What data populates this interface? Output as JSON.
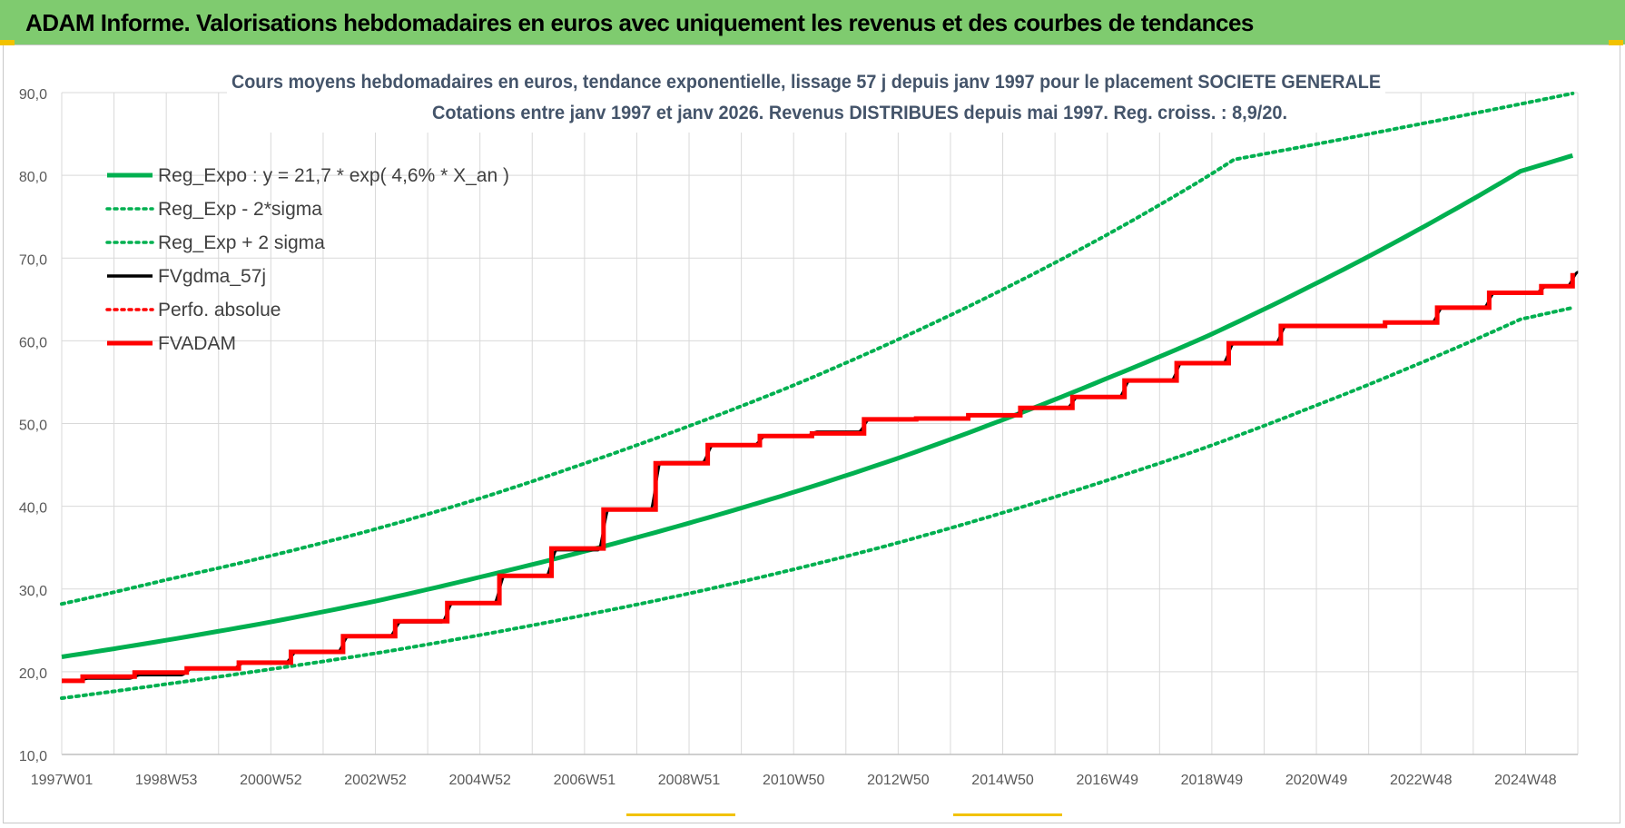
{
  "header": {
    "title": "ADAM Informe. Valorisations hebdomadaires en euros avec uniquement les revenus et des courbes de tendances"
  },
  "chart_data": {
    "type": "line",
    "title": "Cours moyens hebdomadaires en euros, tendance exponentielle, lissage 57 j depuis janv 1997 pour le placement SOCIETE GENERALE",
    "subtitle": "Cotations entre janv 1997 et janv 2026. Revenus DISTRIBUES depuis mai 1997. Reg. croiss. : 8,9/20.",
    "xlabel": "",
    "ylabel": "",
    "ylim": [
      10,
      90
    ],
    "xlim": [
      1997.0,
      2026.1
    ],
    "y_ticks": [
      "10,0",
      "20,0",
      "30,0",
      "40,0",
      "50,0",
      "60,0",
      "70,0",
      "80,0",
      "90,0"
    ],
    "x_tick_labels": [
      "1997W01",
      "1998W53",
      "2000W52",
      "2002W52",
      "2004W52",
      "2006W51",
      "2008W51",
      "2010W50",
      "2012W50",
      "2014W50",
      "2016W49",
      "2018W49",
      "2020W49",
      "2022W48",
      "2024W48"
    ],
    "grid": true,
    "legend_position": "top-left",
    "colors": {
      "green": "#00b050",
      "black": "#000000",
      "red": "#ff0000"
    },
    "series": [
      {
        "name": "Reg_Expo : y = 21,7 * exp( 4,6% *  X_an )",
        "style": "solid",
        "color": "#00b050",
        "x": [
          1997,
          1999,
          2001,
          2003,
          2005,
          2007,
          2009,
          2011,
          2013,
          2015,
          2017,
          2019,
          2021,
          2023,
          2025,
          2026
        ],
        "y": [
          21.8,
          23.8,
          26.0,
          28.5,
          31.4,
          34.5,
          37.9,
          41.6,
          45.7,
          50.3,
          55.3,
          60.6,
          66.7,
          73.3,
          80.5,
          82.4
        ]
      },
      {
        "name": "Reg_Exp - 2*sigma",
        "style": "dotted",
        "color": "#00b050",
        "x": [
          1997,
          1999,
          2001,
          2003,
          2005,
          2007,
          2009,
          2011,
          2013,
          2015,
          2017,
          2019,
          2021,
          2023,
          2025,
          2026
        ],
        "y": [
          16.8,
          18.5,
          20.3,
          22.2,
          24.4,
          26.8,
          29.4,
          32.3,
          35.5,
          39.1,
          43.0,
          47.2,
          52.0,
          57.1,
          62.6,
          64.0
        ]
      },
      {
        "name": "Reg_Exp + 2 sigma",
        "style": "dotted",
        "color": "#00b050",
        "x": [
          1997,
          1999,
          2001,
          2003,
          2005,
          2007,
          2009,
          2011,
          2013,
          2015,
          2017,
          2019,
          2019.5,
          2026
        ],
        "y": [
          28.2,
          31.1,
          34.0,
          37.2,
          40.9,
          45.1,
          49.6,
          54.5,
          60.0,
          66.0,
          72.6,
          79.9,
          81.9,
          89.9
        ]
      },
      {
        "name": "FVgdma_57j",
        "style": "solid",
        "color": "#000000",
        "x": [
          1997.0,
          1997.4,
          1998.4,
          1999.4,
          2000.4,
          2001.4,
          2002.4,
          2003.4,
          2004.4,
          2005.4,
          2006.4,
          2007.4,
          2008.4,
          2009.4,
          2010.4,
          2011.4,
          2012.4,
          2013.4,
          2014.4,
          2015.4,
          2016.4,
          2017.4,
          2018.4,
          2019.4,
          2020.4,
          2021.4,
          2022.4,
          2023.4,
          2024.4,
          2025.4,
          2026.0
        ],
        "y": [
          18.9,
          19.2,
          19.6,
          20.4,
          21.1,
          22.4,
          24.3,
          26.0,
          28.3,
          31.6,
          34.7,
          39.6,
          45.3,
          47.4,
          48.5,
          49.0,
          50.5,
          50.6,
          51.0,
          51.9,
          53.2,
          55.2,
          57.4,
          59.7,
          61.8,
          61.8,
          62.2,
          64.0,
          65.8,
          66.6,
          68.3
        ]
      },
      {
        "name": "Perfo. absolue",
        "style": "dotted",
        "color": "#ff0000",
        "x": [],
        "y": []
      },
      {
        "name": "FVADAM",
        "style": "solid-step",
        "color": "#ff0000",
        "x": [
          1997.0,
          1997.4,
          1998.4,
          1999.4,
          2000.4,
          2001.4,
          2002.4,
          2003.4,
          2004.4,
          2005.4,
          2006.4,
          2007.4,
          2008.4,
          2009.4,
          2010.4,
          2011.4,
          2012.4,
          2013.4,
          2014.4,
          2015.4,
          2016.4,
          2017.4,
          2018.4,
          2019.4,
          2020.4,
          2021.4,
          2022.4,
          2023.4,
          2024.4,
          2025.4,
          2026.0
        ],
        "y": [
          18.9,
          19.4,
          19.9,
          20.4,
          21.1,
          22.4,
          24.3,
          26.1,
          28.3,
          31.6,
          34.9,
          39.6,
          45.2,
          47.4,
          48.5,
          48.8,
          50.5,
          50.6,
          51.0,
          51.9,
          53.2,
          55.2,
          57.3,
          59.7,
          61.8,
          61.8,
          62.2,
          64.0,
          65.8,
          66.6,
          68.2
        ]
      }
    ]
  }
}
